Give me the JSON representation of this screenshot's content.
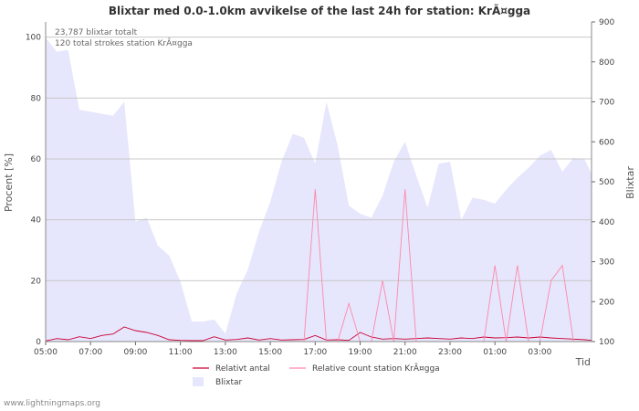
{
  "chart_data": {
    "type": "area+line",
    "title": "Blixtar med 0.0-1.0km avvikelse of the last 24h for station: KrÃ¤gga",
    "ylabel_left": "Procent   [%]",
    "ylabel_right": "Blixtar",
    "xlabel": "Tid",
    "annotation_lines": [
      "23,787 blixtar totalt",
      "120 total strokes station KrÃ¤gga"
    ],
    "y_left": {
      "min": 0,
      "max": 105,
      "ticks": [
        0,
        20,
        40,
        60,
        80,
        100
      ]
    },
    "y_right": {
      "min": 100,
      "max": 900,
      "ticks": [
        100,
        200,
        300,
        400,
        500,
        600,
        700,
        800,
        900
      ]
    },
    "x": {
      "start_hour": 5,
      "end_hour": 29.3,
      "ticks": [
        "05:00",
        "07:00",
        "09:00",
        "11:00",
        "13:00",
        "15:00",
        "17:00",
        "19:00",
        "21:00",
        "23:00",
        "01:00",
        "03:00"
      ]
    },
    "series": [
      {
        "name": "Blixtar",
        "kind": "area",
        "axis": "right",
        "color": "#e6e6fc",
        "points": [
          [
            5.0,
            860
          ],
          [
            5.5,
            825
          ],
          [
            6.0,
            830
          ],
          [
            6.5,
            680
          ],
          [
            7.0,
            675
          ],
          [
            7.5,
            670
          ],
          [
            8.0,
            665
          ],
          [
            8.5,
            700
          ],
          [
            9.0,
            400
          ],
          [
            9.5,
            410
          ],
          [
            10.0,
            340
          ],
          [
            10.5,
            315
          ],
          [
            11.0,
            250
          ],
          [
            11.5,
            150
          ],
          [
            12.0,
            150
          ],
          [
            12.5,
            155
          ],
          [
            13.0,
            120
          ],
          [
            13.5,
            220
          ],
          [
            14.0,
            280
          ],
          [
            14.5,
            375
          ],
          [
            15.0,
            450
          ],
          [
            15.5,
            550
          ],
          [
            16.0,
            620
          ],
          [
            16.5,
            610
          ],
          [
            17.0,
            545
          ],
          [
            17.5,
            700
          ],
          [
            18.0,
            590
          ],
          [
            18.5,
            440
          ],
          [
            19.0,
            420
          ],
          [
            19.5,
            410
          ],
          [
            20.0,
            465
          ],
          [
            20.5,
            550
          ],
          [
            21.0,
            600
          ],
          [
            21.5,
            515
          ],
          [
            22.0,
            435
          ],
          [
            22.5,
            545
          ],
          [
            23.0,
            550
          ],
          [
            23.5,
            405
          ],
          [
            24.0,
            460
          ],
          [
            24.5,
            455
          ],
          [
            25.0,
            445
          ],
          [
            25.5,
            480
          ],
          [
            26.0,
            510
          ],
          [
            26.5,
            535
          ],
          [
            27.0,
            565
          ],
          [
            27.5,
            580
          ],
          [
            28.0,
            525
          ],
          [
            28.5,
            560
          ],
          [
            29.0,
            555
          ],
          [
            29.3,
            520
          ]
        ]
      },
      {
        "name": "Relativt antal",
        "kind": "line",
        "axis": "left",
        "color": "#cc0033",
        "points": [
          [
            5.0,
            0.2
          ],
          [
            5.5,
            1.0
          ],
          [
            6.0,
            0.6
          ],
          [
            6.5,
            1.6
          ],
          [
            7.0,
            1.0
          ],
          [
            7.5,
            2.0
          ],
          [
            8.0,
            2.5
          ],
          [
            8.5,
            4.8
          ],
          [
            9.0,
            3.6
          ],
          [
            9.5,
            3.0
          ],
          [
            10.0,
            2.0
          ],
          [
            10.5,
            0.6
          ],
          [
            11.0,
            0.4
          ],
          [
            11.5,
            0.3
          ],
          [
            12.0,
            0.3
          ],
          [
            12.5,
            1.6
          ],
          [
            13.0,
            0.5
          ],
          [
            13.5,
            0.7
          ],
          [
            14.0,
            1.2
          ],
          [
            14.5,
            0.5
          ],
          [
            15.0,
            1.0
          ],
          [
            15.5,
            0.5
          ],
          [
            16.0,
            0.6
          ],
          [
            16.5,
            0.7
          ],
          [
            17.0,
            2.0
          ],
          [
            17.5,
            0.5
          ],
          [
            18.0,
            0.6
          ],
          [
            18.5,
            0.4
          ],
          [
            19.0,
            3.0
          ],
          [
            19.5,
            1.5
          ],
          [
            20.0,
            0.8
          ],
          [
            20.5,
            1.0
          ],
          [
            21.0,
            0.8
          ],
          [
            21.5,
            1.0
          ],
          [
            22.0,
            1.2
          ],
          [
            22.5,
            1.0
          ],
          [
            23.0,
            0.8
          ],
          [
            23.5,
            1.2
          ],
          [
            24.0,
            1.0
          ],
          [
            24.5,
            1.5
          ],
          [
            25.0,
            1.2
          ],
          [
            25.5,
            1.3
          ],
          [
            26.0,
            1.5
          ],
          [
            26.5,
            1.2
          ],
          [
            27.0,
            1.5
          ],
          [
            27.5,
            1.2
          ],
          [
            28.0,
            1.0
          ],
          [
            28.5,
            0.8
          ],
          [
            29.0,
            0.6
          ],
          [
            29.3,
            0.4
          ]
        ]
      },
      {
        "name": "Relative count station KrÃ¤gga",
        "kind": "line",
        "axis": "left",
        "color": "#ff88aa",
        "points": [
          [
            5.0,
            0
          ],
          [
            16.5,
            0
          ],
          [
            17.0,
            50
          ],
          [
            17.5,
            0
          ],
          [
            18.0,
            0
          ],
          [
            18.5,
            12.5
          ],
          [
            19.0,
            0
          ],
          [
            19.5,
            0
          ],
          [
            20.0,
            20
          ],
          [
            20.5,
            0
          ],
          [
            21.0,
            50
          ],
          [
            21.5,
            0
          ],
          [
            22.0,
            0
          ],
          [
            22.5,
            0
          ],
          [
            23.0,
            0
          ],
          [
            23.5,
            0
          ],
          [
            24.0,
            0
          ],
          [
            24.5,
            0
          ],
          [
            25.0,
            25
          ],
          [
            25.5,
            0
          ],
          [
            26.0,
            25
          ],
          [
            26.5,
            0
          ],
          [
            27.0,
            0
          ],
          [
            27.5,
            20
          ],
          [
            28.0,
            25
          ],
          [
            28.5,
            0
          ],
          [
            29.0,
            0
          ],
          [
            29.3,
            0
          ]
        ]
      }
    ],
    "legend": [
      {
        "label": "Relativt antal",
        "kind": "line",
        "color": "#cc0033"
      },
      {
        "label": "Relative count station KrÃ¤gga",
        "kind": "line",
        "color": "#ff88aa"
      },
      {
        "label": "Blixtar",
        "kind": "area",
        "color": "#e6e6fc"
      }
    ],
    "legend_position": "bottom"
  },
  "footer": "www.lightningmaps.org"
}
